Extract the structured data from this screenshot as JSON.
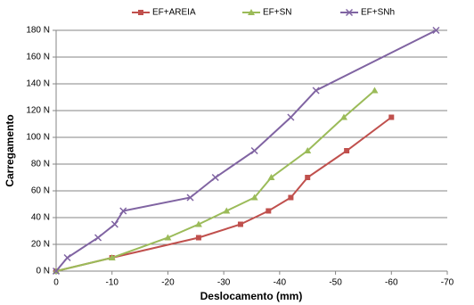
{
  "chart_data": {
    "type": "line",
    "x_label": "Deslocamento (mm)",
    "y_label": "Carregamento",
    "xlim": [
      0,
      -70
    ],
    "xticks": [
      0,
      -10,
      -20,
      -30,
      -40,
      -50,
      -60,
      -70
    ],
    "ylim": [
      0,
      180
    ],
    "yticks": [
      {
        "value": 0,
        "label": "0 N"
      },
      {
        "value": 20,
        "label": "20 N"
      },
      {
        "value": 40,
        "label": "40 N"
      },
      {
        "value": 60,
        "label": "60 N"
      },
      {
        "value": 80,
        "label": "80 N"
      },
      {
        "value": 100,
        "label": "100 N"
      },
      {
        "value": 120,
        "label": "120 N"
      },
      {
        "value": 140,
        "label": "140 N"
      },
      {
        "value": 160,
        "label": "160 N"
      },
      {
        "value": 180,
        "label": "180 N"
      }
    ],
    "grid": true,
    "legend": "top",
    "series": [
      {
        "name": "EF+AREIA",
        "color": "#c0504d",
        "marker": "square",
        "x": [
          0,
          -10,
          -25.5,
          -33,
          -38,
          -42,
          -45,
          -52,
          -60
        ],
        "values": [
          0,
          10,
          25,
          35,
          45,
          55,
          70,
          90,
          115
        ]
      },
      {
        "name": "EF+SN",
        "color": "#9bbb59",
        "marker": "triangle",
        "x": [
          0,
          -10,
          -20,
          -25.5,
          -30.5,
          -35.5,
          -38.5,
          -45,
          -51.5,
          -57
        ],
        "values": [
          0,
          10,
          25,
          35,
          45,
          55,
          70,
          90,
          115,
          135
        ]
      },
      {
        "name": "EF+SNh",
        "color": "#8064a2",
        "marker": "x",
        "x": [
          0,
          -2,
          -7.5,
          -10.5,
          -12,
          -24,
          -28.5,
          -35.5,
          -42,
          -46.5,
          -68
        ],
        "values": [
          0,
          10,
          25,
          35,
          45,
          55,
          70,
          90,
          115,
          135,
          180
        ]
      }
    ]
  }
}
